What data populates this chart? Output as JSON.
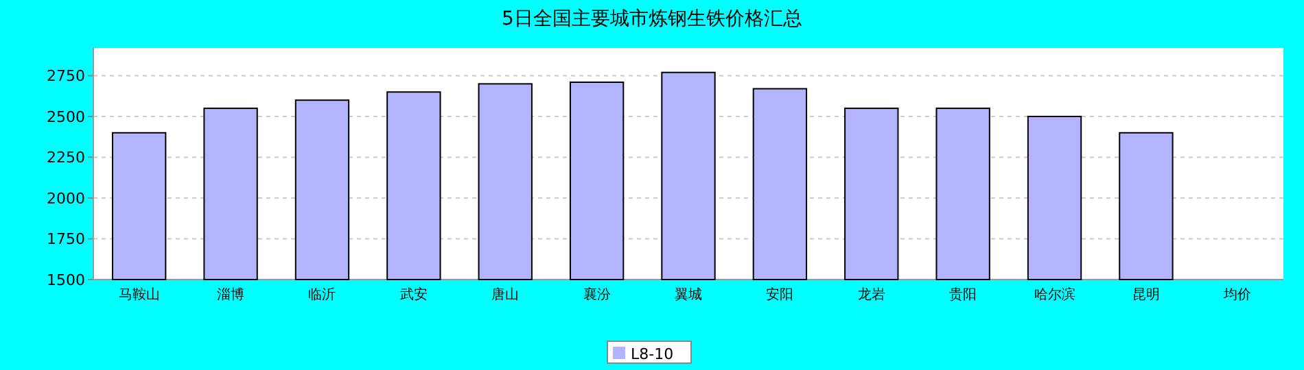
{
  "chart_data": {
    "type": "bar",
    "title": "5日全国主要城市炼钢生铁价格汇总",
    "categories": [
      "马鞍山",
      "淄博",
      "临沂",
      "武安",
      "唐山",
      "襄汾",
      "翼城",
      "安阳",
      "龙岩",
      "贵阳",
      "哈尔滨",
      "昆明",
      "均价"
    ],
    "series": [
      {
        "name": "L8-10",
        "color": "#b3b3ff",
        "values": [
          2400,
          2550,
          2600,
          2650,
          2700,
          2710,
          2770,
          2670,
          2550,
          2550,
          2500,
          2400,
          null
        ]
      }
    ],
    "ylim": [
      1500,
      2920
    ],
    "yticks": [
      1500,
      1750,
      2000,
      2250,
      2500,
      2750
    ],
    "grid": "y",
    "legend": "bottom"
  }
}
